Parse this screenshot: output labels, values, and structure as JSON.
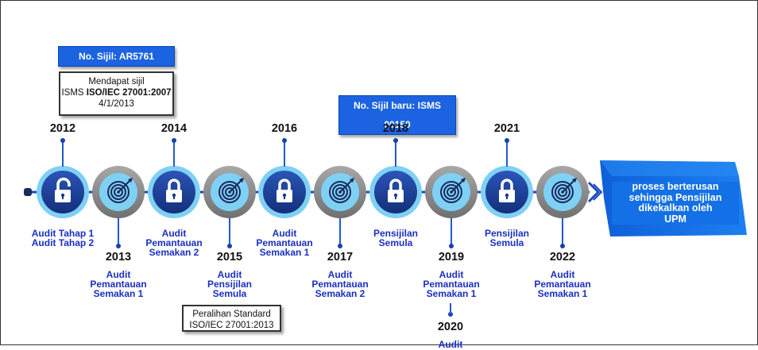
{
  "top_badge": "No. Sijil: AR5761",
  "first_cert_note": {
    "line1": "Mendapat sijil",
    "line2_prefix": "ISMS ",
    "line2_bold": "ISO/IEC 27001:2007",
    "line3": "4/1/2013"
  },
  "new_cert_badge": "No. Sijil baru: ISMS 00150",
  "transition_note": {
    "line1": "Peralihan Standard",
    "line2": "ISO/IEC 27001:2013"
  },
  "end_box": {
    "line1": "proses berterusan",
    "line2": "sehingga Pensijilan",
    "line3": "dikekalkan oleh",
    "line4": "UPM"
  },
  "milestones": [
    {
      "year": "2012",
      "position": "top",
      "icon": "unlock-icon",
      "labels": [
        "Audit Tahap 1",
        "Audit Tahap 2"
      ]
    },
    {
      "year": "2013",
      "position": "bottom",
      "icon": "target-icon",
      "labels": [
        "Audit",
        "Pemantauan",
        "Semakan 1"
      ]
    },
    {
      "year": "2014",
      "position": "top",
      "icon": "lock-icon",
      "labels": [
        "Audit",
        "Pemantauan",
        "Semakan 2"
      ]
    },
    {
      "year": "2015",
      "position": "bottom",
      "icon": "target-icon",
      "labels": [
        "Audit",
        "Pensijilan",
        "Semula"
      ]
    },
    {
      "year": "2016",
      "position": "top",
      "icon": "lock-icon",
      "labels": [
        "Audit",
        "Pemantauan",
        "Semakan 1"
      ]
    },
    {
      "year": "2017",
      "position": "bottom",
      "icon": "target-icon",
      "labels": [
        "Audit",
        "Pemantauan",
        "Semakan 2"
      ]
    },
    {
      "year": "2018",
      "position": "top",
      "icon": "lock-icon",
      "labels": [
        "Pensijilan",
        "Semula"
      ]
    },
    {
      "year": "2019",
      "position": "bottom",
      "icon": "target-icon",
      "labels": [
        "Audit",
        "Pemantauan",
        "Semakan 1"
      ]
    },
    {
      "year": "2021",
      "position": "top",
      "icon": "lock-icon",
      "labels": [
        "Pensijilan",
        "Semula"
      ]
    },
    {
      "year": "2022",
      "position": "bottom",
      "icon": "target-icon",
      "labels": [
        "Audit",
        "Pemantauan",
        "Semakan 1"
      ]
    }
  ],
  "extra_milestone": {
    "year": "2020",
    "label_partial": "Audit"
  },
  "colors": {
    "navy": "#173a8c",
    "light_blue": "#7fd0f5",
    "gray_ring": "#8c8c8c",
    "label_blue": "#1a2fc0",
    "accent": "#1b63e0"
  }
}
